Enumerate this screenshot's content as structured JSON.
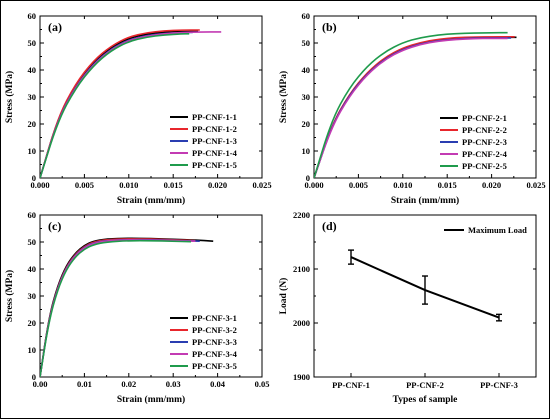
{
  "chart_data": [
    {
      "panel": "(a)",
      "type": "line",
      "xlabel": "Strain (mm/mm)",
      "ylabel": "Stress (MPa)",
      "xlim": [
        0,
        0.025
      ],
      "ylim": [
        0,
        60
      ],
      "xticks": [
        "0.000",
        "0.005",
        "0.010",
        "0.015",
        "0.020",
        "0.025"
      ],
      "yticks": [
        "0",
        "10",
        "20",
        "30",
        "40",
        "50",
        "60"
      ],
      "legend_position": "bottom-right",
      "series": [
        {
          "name": "PP-CNF-1-1",
          "color": "#000000",
          "values": [
            [
              0,
              0
            ],
            [
              0.002,
              22
            ],
            [
              0.004,
              34.5
            ],
            [
              0.006,
              43
            ],
            [
              0.008,
              48.5
            ],
            [
              0.01,
              51.8
            ],
            [
              0.012,
              53.3
            ],
            [
              0.014,
              54.0
            ],
            [
              0.016,
              54.3
            ],
            [
              0.0178,
              54.3
            ]
          ]
        },
        {
          "name": "PP-CNF-1-2",
          "color": "#e8262c",
          "values": [
            [
              0,
              0
            ],
            [
              0.002,
              22.3
            ],
            [
              0.004,
              34.9
            ],
            [
              0.006,
              43.4
            ],
            [
              0.008,
              48.9
            ],
            [
              0.01,
              52.3
            ],
            [
              0.012,
              53.8
            ],
            [
              0.014,
              54.5
            ],
            [
              0.016,
              54.8
            ],
            [
              0.018,
              54.8
            ]
          ]
        },
        {
          "name": "PP-CNF-1-3",
          "color": "#2a3eb1",
          "values": [
            [
              0,
              0
            ],
            [
              0.002,
              21.6
            ],
            [
              0.004,
              33.9
            ],
            [
              0.006,
              42.3
            ],
            [
              0.008,
              47.8
            ],
            [
              0.01,
              51.2
            ],
            [
              0.012,
              52.8
            ],
            [
              0.014,
              53.6
            ],
            [
              0.016,
              53.9
            ],
            [
              0.0172,
              53.9
            ]
          ]
        },
        {
          "name": "PP-CNF-1-4",
          "color": "#c33bb3",
          "values": [
            [
              0,
              0
            ],
            [
              0.002,
              21.4
            ],
            [
              0.004,
              33.6
            ],
            [
              0.006,
              42.0
            ],
            [
              0.008,
              47.6
            ],
            [
              0.01,
              51.0
            ],
            [
              0.012,
              52.6
            ],
            [
              0.014,
              53.4
            ],
            [
              0.016,
              53.9
            ],
            [
              0.018,
              54.1
            ],
            [
              0.0204,
              54.1
            ]
          ]
        },
        {
          "name": "PP-CNF-1-5",
          "color": "#1f9b4c",
          "values": [
            [
              0,
              0
            ],
            [
              0.002,
              21.0
            ],
            [
              0.004,
              33.2
            ],
            [
              0.006,
              41.6
            ],
            [
              0.008,
              47.2
            ],
            [
              0.01,
              50.6
            ],
            [
              0.012,
              52.2
            ],
            [
              0.014,
              53.0
            ],
            [
              0.016,
              53.4
            ],
            [
              0.0168,
              53.4
            ]
          ]
        }
      ]
    },
    {
      "panel": "(b)",
      "type": "line",
      "xlabel": "Strain (mm/mm)",
      "ylabel": "Stress (MPa)",
      "xlim": [
        0,
        0.025
      ],
      "ylim": [
        0,
        60
      ],
      "xticks": [
        "0.000",
        "0.005",
        "0.010",
        "0.015",
        "0.020",
        "0.025"
      ],
      "yticks": [
        "0",
        "10",
        "20",
        "30",
        "40",
        "50",
        "60"
      ],
      "legend_position": "bottom-right",
      "series": [
        {
          "name": "PP-CNF-2-1",
          "color": "#000000",
          "values": [
            [
              0,
              0
            ],
            [
              0.002,
              19.5
            ],
            [
              0.004,
              31.0
            ],
            [
              0.006,
              39.0
            ],
            [
              0.008,
              44.5
            ],
            [
              0.01,
              48.0
            ],
            [
              0.012,
              50.0
            ],
            [
              0.014,
              51.2
            ],
            [
              0.016,
              51.8
            ],
            [
              0.018,
              52.0
            ],
            [
              0.02,
              52.1
            ],
            [
              0.0228,
              52.1
            ]
          ]
        },
        {
          "name": "PP-CNF-2-2",
          "color": "#e8262c",
          "values": [
            [
              0,
              0
            ],
            [
              0.002,
              19.6
            ],
            [
              0.004,
              31.2
            ],
            [
              0.006,
              39.2
            ],
            [
              0.008,
              44.7
            ],
            [
              0.01,
              48.2
            ],
            [
              0.012,
              50.2
            ],
            [
              0.014,
              51.4
            ],
            [
              0.016,
              52.0
            ],
            [
              0.018,
              52.2
            ],
            [
              0.02,
              52.3
            ],
            [
              0.0226,
              52.3
            ]
          ]
        },
        {
          "name": "PP-CNF-2-3",
          "color": "#2a3eb1",
          "values": [
            [
              0,
              0
            ],
            [
              0.002,
              19.3
            ],
            [
              0.004,
              30.8
            ],
            [
              0.006,
              38.7
            ],
            [
              0.008,
              44.2
            ],
            [
              0.01,
              47.7
            ],
            [
              0.012,
              49.7
            ],
            [
              0.014,
              50.9
            ],
            [
              0.016,
              51.5
            ],
            [
              0.018,
              51.8
            ],
            [
              0.02,
              51.9
            ],
            [
              0.0222,
              51.9
            ]
          ]
        },
        {
          "name": "PP-CNF-2-4",
          "color": "#c33bb3",
          "values": [
            [
              0,
              0
            ],
            [
              0.002,
              19.0
            ],
            [
              0.004,
              30.4
            ],
            [
              0.006,
              38.4
            ],
            [
              0.008,
              43.9
            ],
            [
              0.01,
              47.4
            ],
            [
              0.012,
              49.5
            ],
            [
              0.014,
              50.7
            ],
            [
              0.016,
              51.3
            ],
            [
              0.018,
              51.6
            ],
            [
              0.02,
              51.7
            ],
            [
              0.0218,
              51.7
            ]
          ]
        },
        {
          "name": "PP-CNF-2-5",
          "color": "#1f9b4c",
          "values": [
            [
              0,
              0
            ],
            [
              0.002,
              21.5
            ],
            [
              0.004,
              33.5
            ],
            [
              0.006,
              41.5
            ],
            [
              0.008,
              46.8
            ],
            [
              0.01,
              50.2
            ],
            [
              0.012,
              52.0
            ],
            [
              0.014,
              53.0
            ],
            [
              0.016,
              53.5
            ],
            [
              0.018,
              53.7
            ],
            [
              0.02,
              53.8
            ],
            [
              0.0218,
              53.8
            ]
          ]
        }
      ]
    },
    {
      "panel": "(c)",
      "type": "line",
      "xlabel": "Strain (mm/mm)",
      "ylabel": "Stress (MPa)",
      "xlim": [
        0,
        0.05
      ],
      "ylim": [
        0,
        60
      ],
      "xticks": [
        "0.00",
        "0.01",
        "0.02",
        "0.03",
        "0.04",
        "0.05"
      ],
      "yticks": [
        "0",
        "10",
        "20",
        "30",
        "40",
        "50",
        "60"
      ],
      "legend_position": "bottom-right",
      "series": [
        {
          "name": "PP-CNF-3-1",
          "color": "#000000",
          "values": [
            [
              0,
              0
            ],
            [
              0.002,
              22
            ],
            [
              0.004,
              34
            ],
            [
              0.006,
              41.5
            ],
            [
              0.008,
              46
            ],
            [
              0.01,
              48.8
            ],
            [
              0.012,
              50.3
            ],
            [
              0.015,
              51.2
            ],
            [
              0.02,
              51.4
            ],
            [
              0.025,
              51.3
            ],
            [
              0.03,
              51.0
            ],
            [
              0.035,
              50.7
            ],
            [
              0.039,
              50.3
            ]
          ]
        },
        {
          "name": "PP-CNF-3-2",
          "color": "#e8262c",
          "values": [
            [
              0,
              0
            ],
            [
              0.002,
              21.5
            ],
            [
              0.004,
              33.5
            ],
            [
              0.006,
              41.0
            ],
            [
              0.008,
              45.6
            ],
            [
              0.01,
              48.4
            ],
            [
              0.012,
              50.0
            ],
            [
              0.015,
              50.9
            ],
            [
              0.02,
              51.2
            ],
            [
              0.025,
              51.1
            ],
            [
              0.03,
              50.8
            ],
            [
              0.035,
              50.5
            ]
          ]
        },
        {
          "name": "PP-CNF-3-3",
          "color": "#2a3eb1",
          "values": [
            [
              0,
              0
            ],
            [
              0.002,
              21.2
            ],
            [
              0.004,
              33.2
            ],
            [
              0.006,
              40.7
            ],
            [
              0.008,
              45.3
            ],
            [
              0.01,
              48.1
            ],
            [
              0.012,
              49.7
            ],
            [
              0.015,
              50.6
            ],
            [
              0.02,
              50.9
            ],
            [
              0.025,
              50.8
            ],
            [
              0.03,
              50.6
            ],
            [
              0.036,
              50.3
            ]
          ]
        },
        {
          "name": "PP-CNF-3-4",
          "color": "#c33bb3",
          "values": [
            [
              0,
              0
            ],
            [
              0.002,
              21.0
            ],
            [
              0.004,
              33.0
            ],
            [
              0.006,
              40.5
            ],
            [
              0.008,
              45.1
            ],
            [
              0.01,
              47.9
            ],
            [
              0.012,
              49.5
            ],
            [
              0.015,
              50.5
            ],
            [
              0.02,
              50.8
            ],
            [
              0.025,
              50.7
            ],
            [
              0.03,
              50.5
            ],
            [
              0.035,
              50.3
            ]
          ]
        },
        {
          "name": "PP-CNF-3-5",
          "color": "#1f9b4c",
          "values": [
            [
              0,
              0
            ],
            [
              0.002,
              20.6
            ],
            [
              0.004,
              32.5
            ],
            [
              0.006,
              40.0
            ],
            [
              0.008,
              44.6
            ],
            [
              0.01,
              47.4
            ],
            [
              0.012,
              49.0
            ],
            [
              0.015,
              50.0
            ],
            [
              0.02,
              50.5
            ],
            [
              0.025,
              50.5
            ],
            [
              0.03,
              50.3
            ],
            [
              0.034,
              50.1
            ]
          ]
        }
      ]
    },
    {
      "panel": "(d)",
      "type": "line",
      "xlabel": "Types of sample",
      "ylabel": "Load (N)",
      "categories": [
        "PP-CNF-1",
        "PP-CNF-2",
        "PP-CNF-3"
      ],
      "ylim": [
        1900,
        2200
      ],
      "yticks": [
        "1900",
        "2000",
        "2100",
        "2200"
      ],
      "legend_position": "top-right",
      "series": [
        {
          "name": "Maximum Load",
          "color": "#000000",
          "values": [
            2122,
            2061,
            2010
          ],
          "error": [
            13,
            26,
            6
          ]
        }
      ]
    }
  ]
}
